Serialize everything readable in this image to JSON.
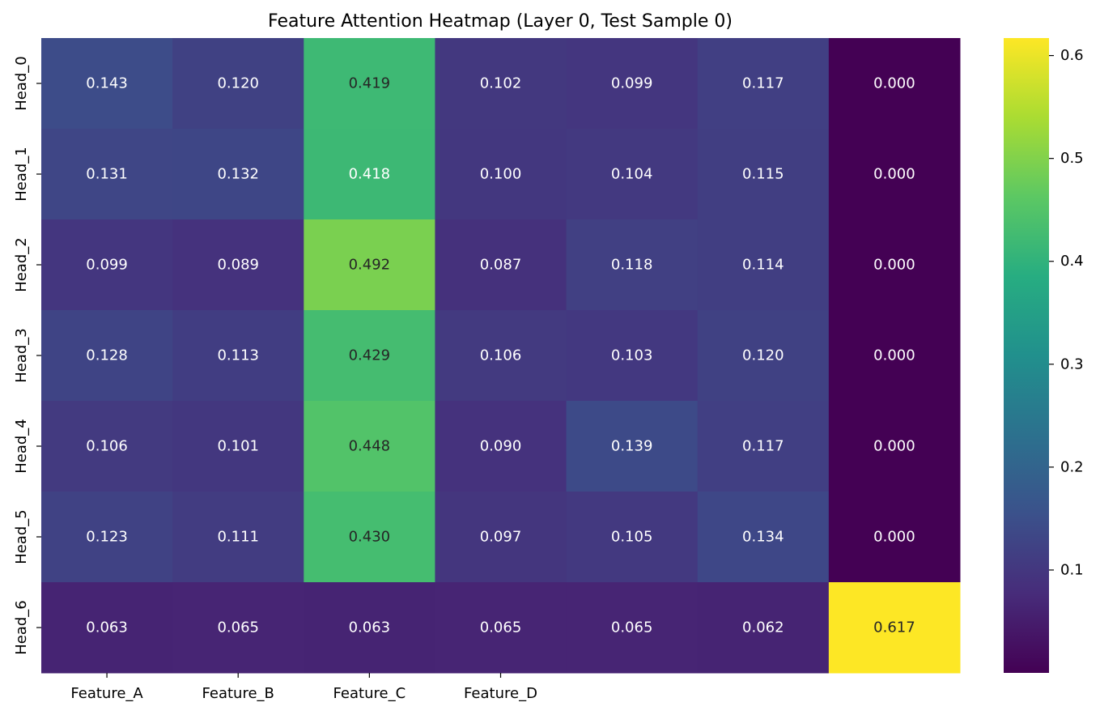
{
  "chart_data": {
    "type": "heatmap",
    "title": "Feature Attention Heatmap (Layer 0, Test Sample 0)",
    "xlabel": "",
    "ylabel": "",
    "x_tick_labels": [
      "Feature_A",
      "Feature_B",
      "Feature_C",
      "Feature_D",
      "",
      "",
      ""
    ],
    "y_tick_labels": [
      "Head_0",
      "Head_1",
      "Head_2",
      "Head_3",
      "Head_4",
      "Head_5",
      "Head_6"
    ],
    "values": [
      [
        0.143,
        0.12,
        0.419,
        0.102,
        0.099,
        0.117,
        0.0
      ],
      [
        0.131,
        0.132,
        0.418,
        0.1,
        0.104,
        0.115,
        0.0
      ],
      [
        0.099,
        0.089,
        0.492,
        0.087,
        0.118,
        0.114,
        0.0
      ],
      [
        0.128,
        0.113,
        0.429,
        0.106,
        0.103,
        0.12,
        0.0
      ],
      [
        0.106,
        0.101,
        0.448,
        0.09,
        0.139,
        0.117,
        0.0
      ],
      [
        0.123,
        0.111,
        0.43,
        0.097,
        0.105,
        0.134,
        0.0
      ],
      [
        0.063,
        0.065,
        0.063,
        0.065,
        0.065,
        0.062,
        0.617
      ]
    ],
    "value_format": "0.000",
    "colormap": "viridis",
    "color_range": [
      0.0,
      0.617
    ],
    "colorbar_ticks": [
      "0.1",
      "0.2",
      "0.3",
      "0.4",
      "0.5",
      "0.6"
    ],
    "annotated": true,
    "grid": false,
    "legend": "colorbar-right"
  }
}
